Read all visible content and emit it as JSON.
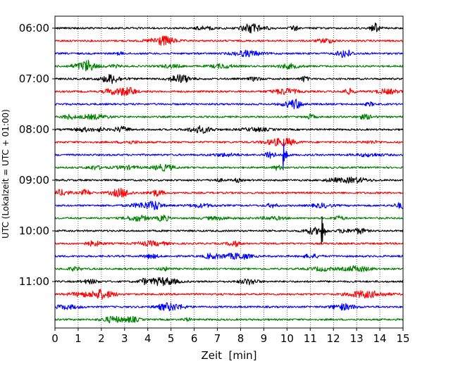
{
  "chart_data": {
    "type": "line",
    "title": "",
    "xlabel": "Zeit  [min]",
    "ylabel": "UTC (Lokalzeit = UTC + 01:00)",
    "xlim": [
      0,
      15
    ],
    "x_ticks": [
      0,
      1,
      2,
      3,
      4,
      5,
      6,
      7,
      8,
      9,
      10,
      11,
      12,
      13,
      14,
      15
    ],
    "y_tick_labels": [
      "06:00",
      "07:00",
      "08:00",
      "09:00",
      "10:00",
      "11:00"
    ],
    "x_grid": true,
    "trace_interval_min": 15,
    "trace_colors": [
      "#000000",
      "#ff0000",
      "#0000ff",
      "#008000"
    ],
    "traces": [
      {
        "start": "06:00",
        "color": "#000000"
      },
      {
        "start": "06:15",
        "color": "#ff0000"
      },
      {
        "start": "06:30",
        "color": "#0000ff"
      },
      {
        "start": "06:45",
        "color": "#008000"
      },
      {
        "start": "07:00",
        "color": "#000000"
      },
      {
        "start": "07:15",
        "color": "#ff0000"
      },
      {
        "start": "07:30",
        "color": "#0000ff"
      },
      {
        "start": "07:45",
        "color": "#008000"
      },
      {
        "start": "08:00",
        "color": "#000000"
      },
      {
        "start": "08:15",
        "color": "#ff0000"
      },
      {
        "start": "08:30",
        "color": "#0000ff"
      },
      {
        "start": "08:45",
        "color": "#008000"
      },
      {
        "start": "09:00",
        "color": "#000000"
      },
      {
        "start": "09:15",
        "color": "#ff0000"
      },
      {
        "start": "09:30",
        "color": "#0000ff"
      },
      {
        "start": "09:45",
        "color": "#008000"
      },
      {
        "start": "10:00",
        "color": "#000000"
      },
      {
        "start": "10:15",
        "color": "#ff0000"
      },
      {
        "start": "10:30",
        "color": "#0000ff"
      },
      {
        "start": "10:45",
        "color": "#008000"
      },
      {
        "start": "11:00",
        "color": "#000000"
      },
      {
        "start": "11:15",
        "color": "#ff0000"
      },
      {
        "start": "11:30",
        "color": "#0000ff"
      },
      {
        "start": "11:45",
        "color": "#008000"
      }
    ],
    "events": [
      {
        "start": "08:30",
        "minute": 9.85
      },
      {
        "start": "10:00",
        "minute": 11.5
      }
    ]
  }
}
